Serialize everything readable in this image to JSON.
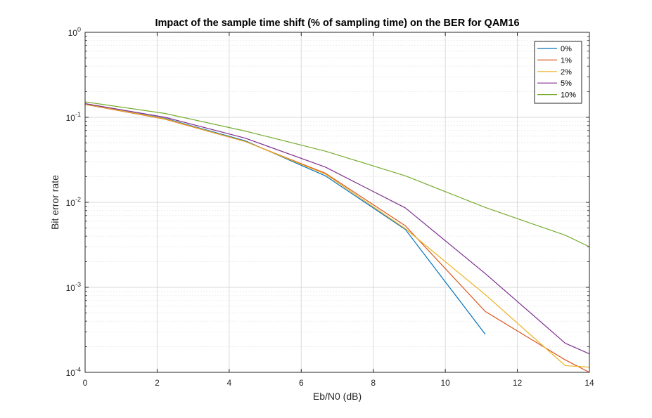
{
  "chart_data": {
    "type": "line",
    "title": "Impact of the sample time shift (% of sampling time) on the BER for QAM16",
    "xlabel": "Eb/N0 (dB)",
    "ylabel": "Bit error rate",
    "xlim": [
      0,
      14
    ],
    "ylim": [
      0.0001,
      1
    ],
    "yscale": "log",
    "grid": true,
    "minor_grid": true,
    "legend_position": "top-right",
    "x_ticks": [
      0,
      2,
      4,
      6,
      8,
      10,
      12,
      14
    ],
    "x_tick_labels": [
      "0",
      "2",
      "4",
      "6",
      "8",
      "10",
      "12",
      "14"
    ],
    "y_ticks": [
      0.0001,
      0.001,
      0.01,
      0.1,
      1
    ],
    "y_tick_labels": [
      {
        "base": "10",
        "exp": "-4"
      },
      {
        "base": "10",
        "exp": "-3"
      },
      {
        "base": "10",
        "exp": "-2"
      },
      {
        "base": "10",
        "exp": "-1"
      },
      {
        "base": "10",
        "exp": "0"
      }
    ],
    "series": [
      {
        "name": "0%",
        "color": "#0072BD",
        "x": [
          0,
          2.22,
          4.44,
          6.67,
          8.89,
          11.11
        ],
        "y": [
          0.142,
          0.097,
          0.053,
          0.0205,
          0.0048,
          0.00028
        ]
      },
      {
        "name": "1%",
        "color": "#D95319",
        "x": [
          0,
          2.22,
          4.44,
          6.67,
          8.89,
          11.11,
          13.33,
          14
        ],
        "y": [
          0.142,
          0.095,
          0.052,
          0.022,
          0.0053,
          0.00052,
          0.00014,
          0.0001
        ]
      },
      {
        "name": "2%",
        "color": "#EDB120",
        "x": [
          0,
          2.22,
          4.44,
          6.67,
          8.89,
          11.11,
          13.33,
          14
        ],
        "y": [
          0.143,
          0.096,
          0.052,
          0.0215,
          0.0049,
          0.00082,
          0.00012,
          0.000115
        ]
      },
      {
        "name": "5%",
        "color": "#7E2F8E",
        "x": [
          0,
          2.22,
          4.44,
          6.67,
          8.89,
          11.11,
          13.33,
          14
        ],
        "y": [
          0.145,
          0.1,
          0.057,
          0.026,
          0.0086,
          0.00145,
          0.00022,
          0.000165
        ]
      },
      {
        "name": "10%",
        "color": "#77AC30",
        "x": [
          0,
          2.22,
          4.44,
          6.67,
          8.89,
          11.11,
          13.33,
          14
        ],
        "y": [
          0.152,
          0.111,
          0.069,
          0.04,
          0.0205,
          0.0087,
          0.0041,
          0.003
        ]
      }
    ]
  }
}
